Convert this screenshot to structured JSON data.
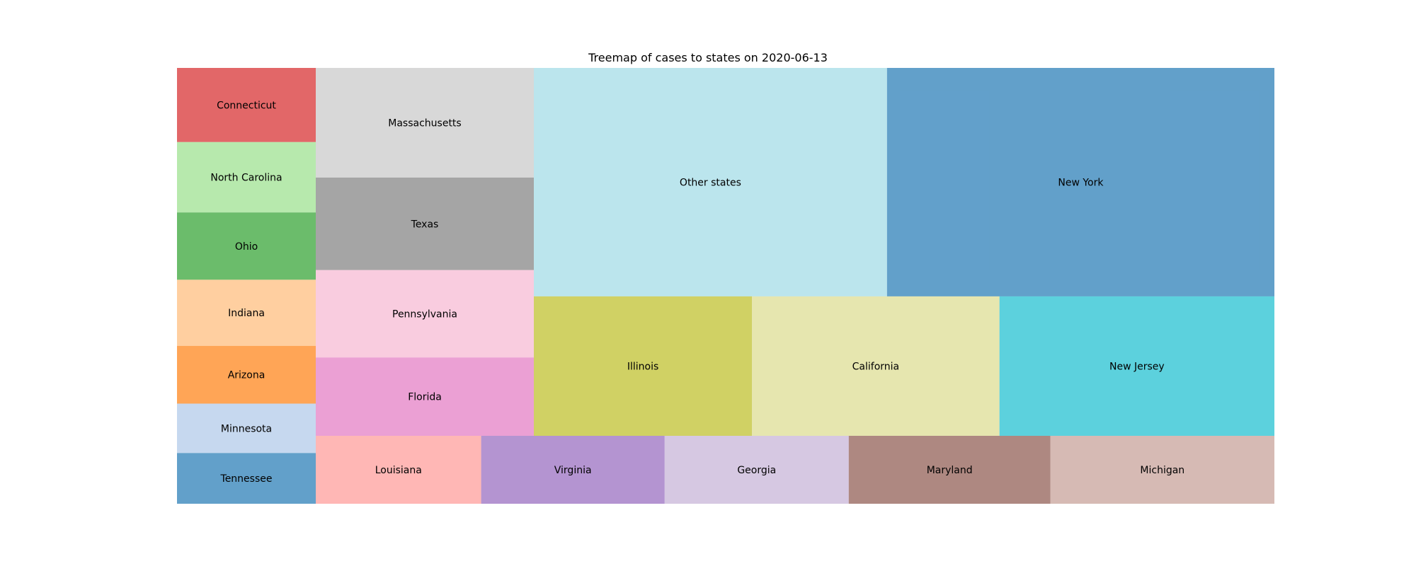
{
  "chart_data": {
    "type": "treemap",
    "title": "Treemap of cases to states on 2020-06-13",
    "series": [
      {
        "name": "cases",
        "values": [
          {
            "label": "Tennessee",
            "value": 31321,
            "color": "#1f77b4"
          },
          {
            "label": "Minnesota",
            "value": 30471,
            "color": "#aec7e8"
          },
          {
            "label": "Arizona",
            "value": 35675,
            "color": "#ff7f0e"
          },
          {
            "label": "Indiana",
            "value": 40786,
            "color": "#ffbb78"
          },
          {
            "label": "Ohio",
            "value": 41538,
            "color": "#2ca02c"
          },
          {
            "label": "North Carolina",
            "value": 43447,
            "color": "#98df8a"
          },
          {
            "label": "Connecticut",
            "value": 45715,
            "color": "#d62728"
          },
          {
            "label": "Florida",
            "value": 75568,
            "color": "#e377c2"
          },
          {
            "label": "Pennsylvania",
            "value": 84233,
            "color": "#f7b6d2"
          },
          {
            "label": "Texas",
            "value": 89108,
            "color": "#7f7f7f"
          },
          {
            "label": "Massachusetts",
            "value": 105690,
            "color": "#c7c7c7"
          },
          {
            "label": "Louisiana",
            "value": 51183,
            "color": "#ff9896"
          },
          {
            "label": "Virginia",
            "value": 56793,
            "color": "#9467bd"
          },
          {
            "label": "Georgia",
            "value": 56974,
            "color": "#c5b0d5"
          },
          {
            "label": "Maryland",
            "value": 62409,
            "color": "#8c564b"
          },
          {
            "label": "Michigan",
            "value": 69329,
            "color": "#c49c94"
          },
          {
            "label": "Illinois",
            "value": 131198,
            "color": "#bcbd22"
          },
          {
            "label": "California",
            "value": 148855,
            "color": "#dbdb8d"
          },
          {
            "label": "New Jersey",
            "value": 165346,
            "color": "#17becf"
          },
          {
            "label": "Other states",
            "value": 348000,
            "color": "#9edae5"
          },
          {
            "label": "New York",
            "value": 381714,
            "color": "#1f77b4"
          }
        ]
      }
    ],
    "xlabel": "",
    "ylabel": "",
    "grid": false,
    "legend": "none",
    "alpha": 0.7
  }
}
